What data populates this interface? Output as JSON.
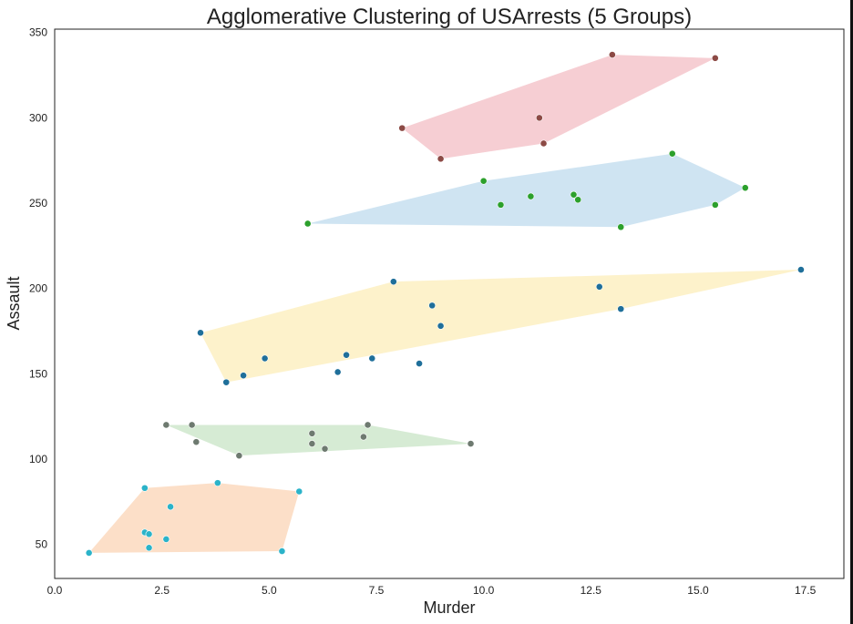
{
  "chart_data": {
    "type": "scatter",
    "title": "Agglomerative Clustering of USArrests (5 Groups)",
    "xlabel": "Murder",
    "ylabel": "Assault",
    "xlim": [
      0,
      18.4
    ],
    "ylim": [
      30,
      352
    ],
    "xticks": [
      "0.0",
      "2.5",
      "5.0",
      "7.5",
      "10.0",
      "12.5",
      "15.0",
      "17.5"
    ],
    "xtick_values": [
      0,
      2.5,
      5,
      7.5,
      10,
      12.5,
      15,
      17.5
    ],
    "yticks": [
      "50",
      "100",
      "150",
      "200",
      "250",
      "300",
      "350"
    ],
    "ytick_values": [
      50,
      100,
      150,
      200,
      250,
      300,
      350
    ],
    "grid": false,
    "groups": [
      {
        "fill_color": "#f4c6cb",
        "point_color": "#8c4a45",
        "points": [
          [
            8.1,
            294
          ],
          [
            9.0,
            276
          ],
          [
            11.3,
            300
          ],
          [
            11.4,
            285
          ],
          [
            13.0,
            337
          ],
          [
            15.4,
            335
          ]
        ],
        "hull": [
          [
            8.1,
            294
          ],
          [
            9.0,
            276
          ],
          [
            11.4,
            285
          ],
          [
            15.4,
            335
          ],
          [
            13.0,
            337
          ]
        ]
      },
      {
        "fill_color": "#c7dff0",
        "point_color": "#2ca02c",
        "points": [
          [
            5.9,
            238
          ],
          [
            10.0,
            263
          ],
          [
            10.4,
            249
          ],
          [
            11.1,
            254
          ],
          [
            12.1,
            255
          ],
          [
            12.2,
            252
          ],
          [
            13.2,
            236
          ],
          [
            14.4,
            279
          ],
          [
            15.4,
            249
          ],
          [
            16.1,
            259
          ]
        ],
        "hull": [
          [
            5.9,
            238
          ],
          [
            13.2,
            236
          ],
          [
            15.4,
            249
          ],
          [
            16.1,
            259
          ],
          [
            14.4,
            279
          ],
          [
            10.0,
            263
          ]
        ]
      },
      {
        "fill_color": "#fdf0c2",
        "point_color": "#1f6f9a",
        "points": [
          [
            3.4,
            174
          ],
          [
            4.0,
            145
          ],
          [
            4.4,
            149
          ],
          [
            4.9,
            159
          ],
          [
            6.6,
            151
          ],
          [
            6.8,
            161
          ],
          [
            7.4,
            159
          ],
          [
            7.9,
            204
          ],
          [
            8.5,
            156
          ],
          [
            8.8,
            190
          ],
          [
            9.0,
            178
          ],
          [
            12.7,
            201
          ],
          [
            13.2,
            188
          ],
          [
            17.4,
            211
          ]
        ],
        "hull": [
          [
            3.4,
            174
          ],
          [
            4.0,
            145
          ],
          [
            13.2,
            188
          ],
          [
            17.4,
            211
          ],
          [
            7.9,
            204
          ]
        ]
      },
      {
        "fill_color": "#cfe8cc",
        "point_color": "#6e7a70",
        "points": [
          [
            2.6,
            120
          ],
          [
            3.2,
            120
          ],
          [
            3.3,
            110
          ],
          [
            4.3,
            102
          ],
          [
            6.0,
            115
          ],
          [
            6.0,
            109
          ],
          [
            6.3,
            106
          ],
          [
            7.2,
            113
          ],
          [
            7.3,
            120
          ],
          [
            9.7,
            109
          ]
        ],
        "hull": [
          [
            2.6,
            120
          ],
          [
            4.3,
            102
          ],
          [
            9.7,
            109
          ],
          [
            7.3,
            120
          ]
        ]
      },
      {
        "fill_color": "#fcd9be",
        "point_color": "#2bb3c9",
        "points": [
          [
            0.8,
            45
          ],
          [
            2.1,
            83
          ],
          [
            2.1,
            57
          ],
          [
            2.2,
            56
          ],
          [
            2.2,
            48
          ],
          [
            2.6,
            53
          ],
          [
            2.7,
            72
          ],
          [
            3.8,
            86
          ],
          [
            5.3,
            46
          ],
          [
            5.7,
            81
          ]
        ],
        "hull": [
          [
            0.8,
            45
          ],
          [
            5.3,
            46
          ],
          [
            5.7,
            81
          ],
          [
            3.8,
            86
          ],
          [
            2.1,
            83
          ]
        ]
      }
    ]
  }
}
